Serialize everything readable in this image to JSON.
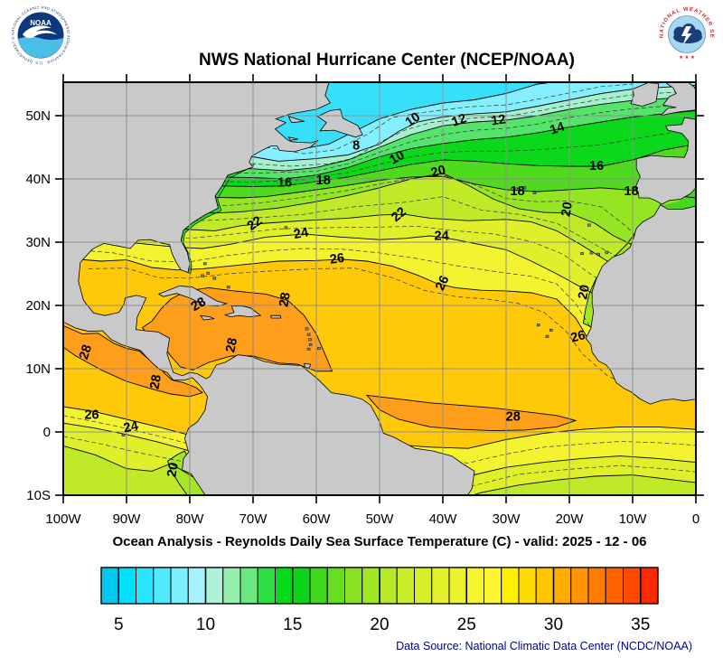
{
  "header": {
    "title": "NWS National Hurricane Center (NCEP/NOAA)"
  },
  "logos": {
    "noaa": {
      "name": "NOAA",
      "ring_text": "NATIONAL OCEANIC AND ATMOSPHERIC ADMINISTRATION · U.S. DEPARTMENT OF COMMERCE"
    },
    "nws": {
      "ring_text": "NATIONAL WEATHER SERVICE",
      "stars": "★ ★ ★"
    }
  },
  "footer": {
    "subtitle": "Ocean Analysis - Reynolds Daily Sea Surface Temperature (C) - valid: 2025 - 12 - 06",
    "data_source": "Data Source: National Climatic Data Center (NCDC/NOAA)"
  },
  "chart_data": {
    "type": "heatmap",
    "title": "NWS National Hurricane Center (NCEP/NOAA)",
    "subtitle": "Ocean Analysis - Reynolds Daily Sea Surface Temperature (C) - valid: 2025 - 12 - 06",
    "variable": "Reynolds Daily Sea Surface Temperature (C)",
    "valid_date": "2025 - 12 - 06",
    "data_source": "Data Source: National Climatic Data Center (NCDC/NOAA)",
    "grid": true,
    "land_color": "#c9c9c9",
    "lake_color": "#3ee3f6",
    "region": {
      "lon_west_deg": [
        100,
        0
      ],
      "lat_deg": [
        -10,
        55.3
      ]
    },
    "x_axis": {
      "tick_labels": [
        "100W",
        "90W",
        "80W",
        "70W",
        "60W",
        "50W",
        "40W",
        "30W",
        "20W",
        "10W",
        "0"
      ]
    },
    "y_axis": {
      "tick_labels": [
        "50N",
        "40N",
        "30N",
        "20N",
        "10N",
        "0",
        "10S"
      ],
      "tick_lats": [
        50,
        40,
        30,
        20,
        10,
        0,
        -10
      ]
    },
    "isotherm_interval_c": 2,
    "isotherm_labels_c": [
      {
        "v": 8,
        "lon": -53.7,
        "lat": 45.2,
        "rot": 0
      },
      {
        "v": 10,
        "lon": -44.7,
        "lat": 49.3,
        "rot": -35
      },
      {
        "v": 12,
        "lon": -37.4,
        "lat": 49.2,
        "rot": -20
      },
      {
        "v": 12,
        "lon": -31.2,
        "lat": 49.2,
        "rot": -8
      },
      {
        "v": 14,
        "lon": -21.9,
        "lat": 47.9,
        "rot": -18
      },
      {
        "v": 10,
        "lon": -47.2,
        "lat": 43.3,
        "rot": -30
      },
      {
        "v": 16,
        "lon": -65.0,
        "lat": 39.3,
        "rot": 0
      },
      {
        "v": 18,
        "lon": -58.9,
        "lat": 39.7,
        "rot": 0
      },
      {
        "v": 20,
        "lon": -40.7,
        "lat": 41.1,
        "rot": -15
      },
      {
        "v": 18,
        "lon": -28.2,
        "lat": 38.0,
        "rot": 0
      },
      {
        "v": 16,
        "lon": -15.7,
        "lat": 42.0,
        "rot": 0
      },
      {
        "v": 18,
        "lon": -10.2,
        "lat": 38.0,
        "rot": 0
      },
      {
        "v": 20,
        "lon": -20.3,
        "lat": 35.2,
        "rot": -80
      },
      {
        "v": 22,
        "lon": -69.7,
        "lat": 32.9,
        "rot": -35
      },
      {
        "v": 24,
        "lon": -62.4,
        "lat": 31.3,
        "rot": -10
      },
      {
        "v": 22,
        "lon": -46.9,
        "lat": 34.3,
        "rot": -40
      },
      {
        "v": 24,
        "lon": -40.2,
        "lat": 30.9,
        "rot": 0
      },
      {
        "v": 26,
        "lon": -56.7,
        "lat": 27.3,
        "rot": -8
      },
      {
        "v": 26,
        "lon": -40.0,
        "lat": 23.5,
        "rot": -65
      },
      {
        "v": 28,
        "lon": -78.6,
        "lat": 20.1,
        "rot": -30
      },
      {
        "v": 28,
        "lon": -64.9,
        "lat": 20.9,
        "rot": -80
      },
      {
        "v": 28,
        "lon": -73.3,
        "lat": 13.7,
        "rot": -78
      },
      {
        "v": 28,
        "lon": -96.4,
        "lat": 12.6,
        "rot": -72
      },
      {
        "v": 28,
        "lon": -85.3,
        "lat": 7.9,
        "rot": -80
      },
      {
        "v": 26,
        "lon": -95.5,
        "lat": 2.6,
        "rot": 0
      },
      {
        "v": 24,
        "lon": -89.3,
        "lat": 0.7,
        "rot": -12
      },
      {
        "v": 20,
        "lon": -82.6,
        "lat": -6.0,
        "rot": -80
      },
      {
        "v": 28,
        "lon": -28.9,
        "lat": 2.3,
        "rot": 0
      },
      {
        "v": 26,
        "lon": -18.6,
        "lat": 15.0,
        "rot": -15
      },
      {
        "v": 20,
        "lon": -17.6,
        "lat": 22.1,
        "rot": -78
      }
    ],
    "colorbar": {
      "min_c": 4,
      "max_c": 36,
      "step_c": 1,
      "tick_labels": [
        5,
        10,
        15,
        20,
        25,
        30,
        35
      ],
      "palette": [
        "#00c8f0",
        "#00e2fc",
        "#27e6fe",
        "#4feafe",
        "#7cefff",
        "#a5f3ff",
        "#aef2da",
        "#96efae",
        "#6ce883",
        "#2edf44",
        "#04da19",
        "#0cd41a",
        "#3fd81d",
        "#68de20",
        "#8ae322",
        "#a2e724",
        "#b6e926",
        "#c8ec28",
        "#d6ee2a",
        "#e2f12c",
        "#ecf32e",
        "#f5f530",
        "#fdf631",
        "#fff000",
        "#ffdc00",
        "#ffc400",
        "#ffac00",
        "#ff9400",
        "#ff7c00",
        "#ff6300",
        "#ff4800",
        "#f92900"
      ]
    }
  }
}
